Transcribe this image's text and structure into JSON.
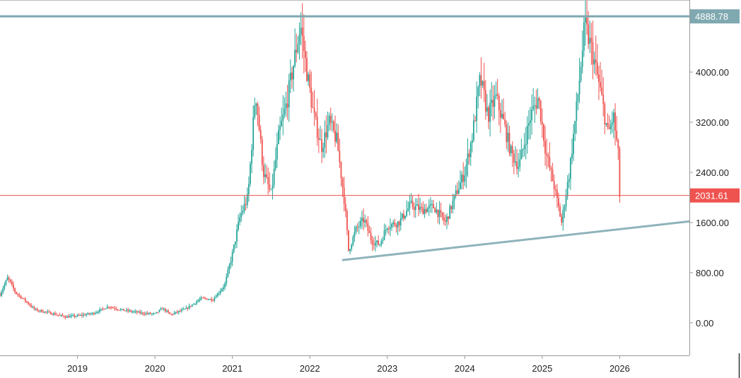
{
  "chart_data": {
    "type": "candlestick",
    "y_ticks": [
      "0.00",
      "800.00",
      "1600.00",
      "2400.00",
      "3200.00",
      "4000.00"
    ],
    "x_ticks": [
      "2019",
      "2020",
      "2021",
      "2022",
      "2023",
      "2024",
      "2025",
      "2026"
    ],
    "ylim": [
      -520,
      5150
    ],
    "xlim": [
      2018.0,
      2026.9
    ],
    "grid": false,
    "colors": {
      "up": "#26a69a",
      "down": "#ef5350",
      "resistance": "#7fa8b0",
      "support": "#8fb3bb",
      "last_price": "#ef5350"
    },
    "resistance": {
      "value": 4888.78,
      "label": "4888.78"
    },
    "last_price": {
      "value": 2031.61,
      "label": "2031.61"
    },
    "support_trendline": [
      {
        "x": "2022-06",
        "y": 1000
      },
      {
        "x": "2026-12",
        "y": 1620
      }
    ],
    "price_path": [
      [
        2018.0,
        450
      ],
      [
        2018.1,
        720
      ],
      [
        2018.2,
        480
      ],
      [
        2018.3,
        380
      ],
      [
        2018.45,
        210
      ],
      [
        2018.7,
        140
      ],
      [
        2018.85,
        95
      ],
      [
        2019.0,
        110
      ],
      [
        2019.2,
        150
      ],
      [
        2019.4,
        260
      ],
      [
        2019.55,
        210
      ],
      [
        2019.7,
        180
      ],
      [
        2019.85,
        150
      ],
      [
        2020.0,
        140
      ],
      [
        2020.1,
        230
      ],
      [
        2020.2,
        130
      ],
      [
        2020.4,
        220
      ],
      [
        2020.6,
        390
      ],
      [
        2020.75,
        370
      ],
      [
        2020.9,
        600
      ],
      [
        2021.0,
        1100
      ],
      [
        2021.1,
        1700
      ],
      [
        2021.2,
        2000
      ],
      [
        2021.3,
        3700
      ],
      [
        2021.4,
        2400
      ],
      [
        2021.5,
        2050
      ],
      [
        2021.6,
        3000
      ],
      [
        2021.7,
        3500
      ],
      [
        2021.8,
        4200
      ],
      [
        2021.88,
        4750
      ],
      [
        2021.95,
        4100
      ],
      [
        2022.05,
        3300
      ],
      [
        2022.15,
        2800
      ],
      [
        2022.25,
        3200
      ],
      [
        2022.35,
        2900
      ],
      [
        2022.45,
        1900
      ],
      [
        2022.5,
        1150
      ],
      [
        2022.6,
        1500
      ],
      [
        2022.7,
        1650
      ],
      [
        2022.8,
        1300
      ],
      [
        2022.9,
        1250
      ],
      [
        2023.0,
        1550
      ],
      [
        2023.15,
        1600
      ],
      [
        2023.3,
        1880
      ],
      [
        2023.45,
        1800
      ],
      [
        2023.6,
        1850
      ],
      [
        2023.75,
        1600
      ],
      [
        2023.9,
        2100
      ],
      [
        2024.0,
        2400
      ],
      [
        2024.1,
        3000
      ],
      [
        2024.2,
        3900
      ],
      [
        2024.3,
        3300
      ],
      [
        2024.4,
        3600
      ],
      [
        2024.5,
        3200
      ],
      [
        2024.6,
        2700
      ],
      [
        2024.7,
        2500
      ],
      [
        2024.85,
        3300
      ],
      [
        2024.95,
        3600
      ],
      [
        2025.05,
        2700
      ],
      [
        2025.15,
        2200
      ],
      [
        2025.25,
        1600
      ],
      [
        2025.35,
        2400
      ],
      [
        2025.45,
        3500
      ],
      [
        2025.55,
        4750
      ],
      [
        2025.65,
        4300
      ],
      [
        2025.75,
        3700
      ],
      [
        2025.85,
        3000
      ],
      [
        2025.92,
        3300
      ],
      [
        2025.98,
        2700
      ],
      [
        2026.0,
        2031.61
      ]
    ]
  }
}
